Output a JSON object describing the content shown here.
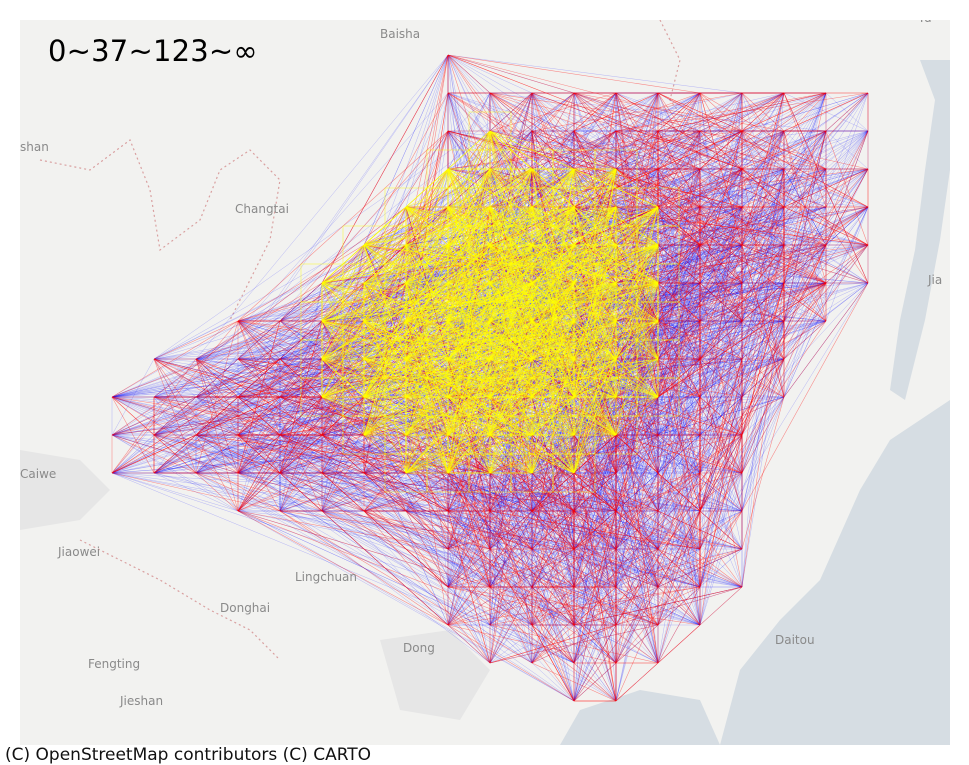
{
  "legend": {
    "label": "0~37~123~∞"
  },
  "attribution": "(C) OpenStreetMap contributors (C) CARTO",
  "places": [
    {
      "name": "Baisha",
      "id": "baisha"
    },
    {
      "name": "shan",
      "id": "shan"
    },
    {
      "name": "Changtai",
      "id": "changtai"
    },
    {
      "name": "Caiwe",
      "id": "caiwe"
    },
    {
      "name": "Jiaowei",
      "id": "jiaowei"
    },
    {
      "name": "Lingchuan",
      "id": "lingchuan"
    },
    {
      "name": "Donghai",
      "id": "donghai"
    },
    {
      "name": "Fengting",
      "id": "fengting"
    },
    {
      "name": "Jieshan",
      "id": "jieshan"
    },
    {
      "name": "Dong",
      "id": "dong"
    },
    {
      "name": "Daitou",
      "id": "daitou"
    },
    {
      "name": "Jia",
      "id": "jia"
    },
    {
      "name": "Yu",
      "id": "yu"
    }
  ],
  "flow_colors": {
    "low": "#0000ff",
    "mid": "#ff0000",
    "high": "#ffff00"
  },
  "map_colors": {
    "land": "#f2f2f0",
    "water": "#d6dde3",
    "urban": "#e4e4e4",
    "border": "#d9a0a0"
  }
}
